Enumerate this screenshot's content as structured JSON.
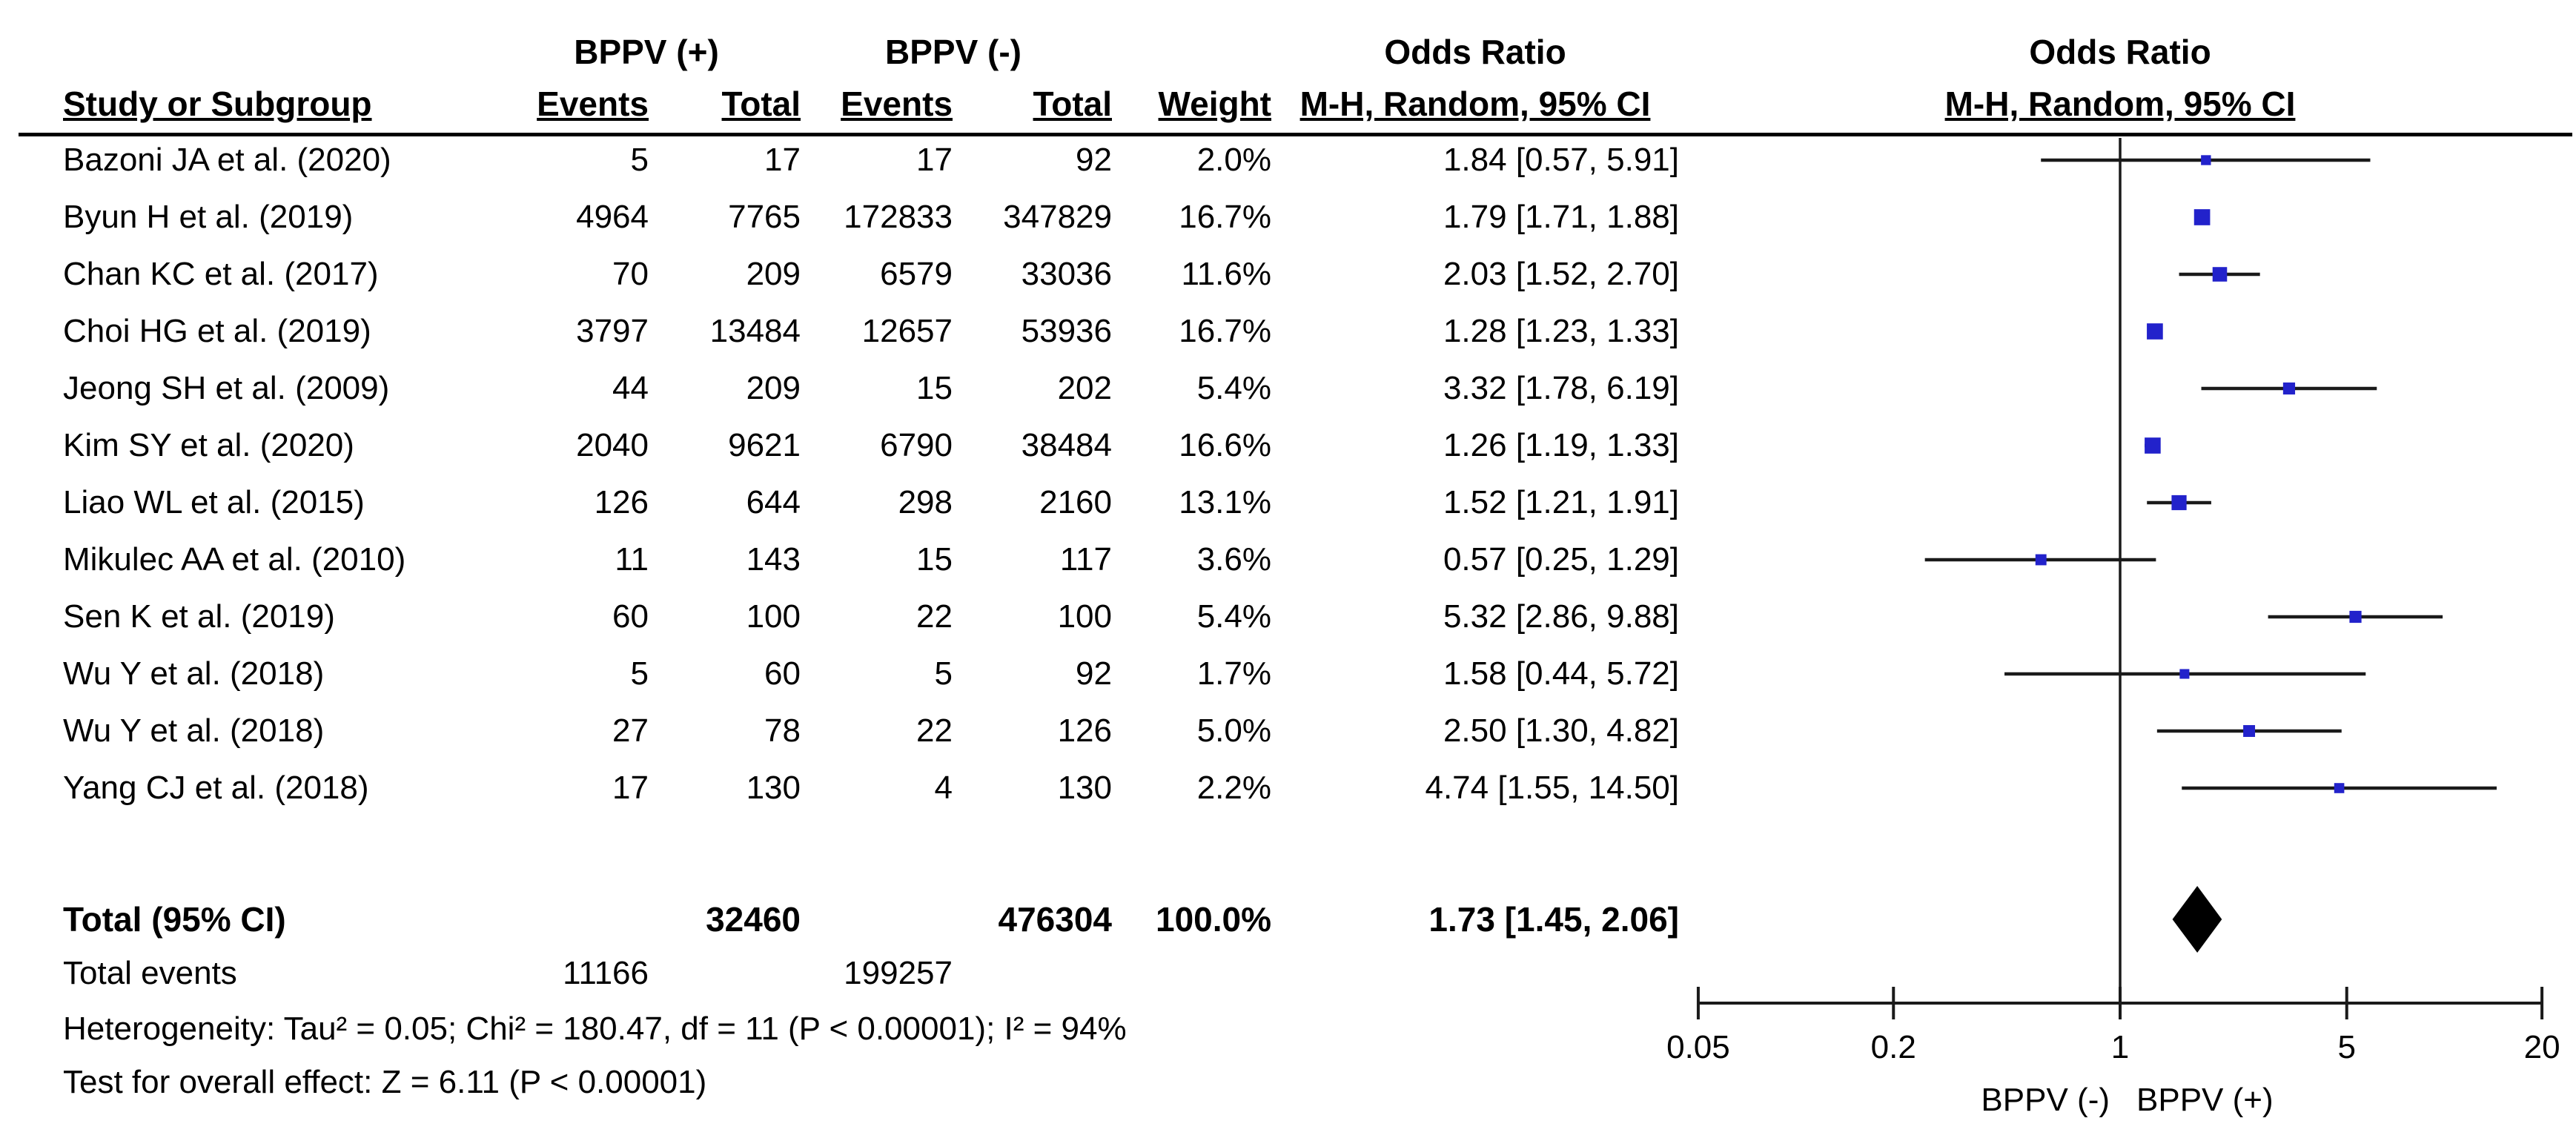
{
  "header": {
    "group_pos": "BPPV (+)",
    "group_neg": "BPPV (-)",
    "study": "Study or Subgroup",
    "events": "Events",
    "total": "Total",
    "weight": "Weight",
    "or_col_title": "Odds Ratio",
    "or_col_sub": "M-H, Random, 95% CI",
    "plot_col_title": "Odds Ratio",
    "plot_col_sub": "M-H, Random, 95% CI"
  },
  "table": {
    "rows": [
      {
        "study": "Bazoni JA et al. (2020)",
        "events1": "5",
        "total1": "17",
        "events2": "17",
        "total2": "92",
        "weight": "2.0%",
        "or_ci": "1.84 [0.57, 5.91]"
      },
      {
        "study": "Byun H et al. (2019)",
        "events1": "4964",
        "total1": "7765",
        "events2": "172833",
        "total2": "347829",
        "weight": "16.7%",
        "or_ci": "1.79 [1.71, 1.88]"
      },
      {
        "study": "Chan KC et al. (2017)",
        "events1": "70",
        "total1": "209",
        "events2": "6579",
        "total2": "33036",
        "weight": "11.6%",
        "or_ci": "2.03 [1.52, 2.70]"
      },
      {
        "study": "Choi HG et al. (2019)",
        "events1": "3797",
        "total1": "13484",
        "events2": "12657",
        "total2": "53936",
        "weight": "16.7%",
        "or_ci": "1.28 [1.23, 1.33]"
      },
      {
        "study": "Jeong SH et al. (2009)",
        "events1": "44",
        "total1": "209",
        "events2": "15",
        "total2": "202",
        "weight": "5.4%",
        "or_ci": "3.32 [1.78, 6.19]"
      },
      {
        "study": "Kim SY et al. (2020)",
        "events1": "2040",
        "total1": "9621",
        "events2": "6790",
        "total2": "38484",
        "weight": "16.6%",
        "or_ci": "1.26 [1.19, 1.33]"
      },
      {
        "study": "Liao WL et al. (2015)",
        "events1": "126",
        "total1": "644",
        "events2": "298",
        "total2": "2160",
        "weight": "13.1%",
        "or_ci": "1.52 [1.21, 1.91]"
      },
      {
        "study": "Mikulec AA et al. (2010)",
        "events1": "11",
        "total1": "143",
        "events2": "15",
        "total2": "117",
        "weight": "3.6%",
        "or_ci": "0.57 [0.25, 1.29]"
      },
      {
        "study": "Sen K et al. (2019)",
        "events1": "60",
        "total1": "100",
        "events2": "22",
        "total2": "100",
        "weight": "5.4%",
        "or_ci": "5.32 [2.86, 9.88]"
      },
      {
        "study": "Wu Y et al. (2018)",
        "events1": "5",
        "total1": "60",
        "events2": "5",
        "total2": "92",
        "weight": "1.7%",
        "or_ci": "1.58 [0.44, 5.72]"
      },
      {
        "study": "Wu Y et al. (2018)",
        "events1": "27",
        "total1": "78",
        "events2": "22",
        "total2": "126",
        "weight": "5.0%",
        "or_ci": "2.50 [1.30, 4.82]"
      },
      {
        "study": "Yang CJ et al. (2018)",
        "events1": "17",
        "total1": "130",
        "events2": "4",
        "total2": "130",
        "weight": "2.2%",
        "or_ci": "4.74 [1.55, 14.50]"
      }
    ],
    "total_row": {
      "study": "Total (95% CI)",
      "events1": "",
      "total1": "32460",
      "events2": "",
      "total2": "476304",
      "weight": "100.0%",
      "or_ci": "1.73 [1.45, 2.06]"
    },
    "total_events_row": {
      "study": "Total events",
      "events1": "11166",
      "total1": "",
      "events2": "199257",
      "total2": "",
      "weight": "",
      "or_ci": ""
    },
    "heterogeneity": "Heterogeneity: Tau² = 0.05; Chi² = 180.47, df = 11 (P < 0.00001); I² = 94%",
    "overall_effect": "Test for overall effect: Z = 6.11 (P < 0.00001)"
  },
  "chart_data": {
    "type": "forest",
    "scale": "log10",
    "xlim": [
      0.05,
      20
    ],
    "null_line": 1,
    "axis_ticks": [
      0.05,
      0.2,
      1,
      5,
      20
    ],
    "axis_tick_labels": [
      "0.05",
      "0.2",
      "1",
      "5",
      "20"
    ],
    "axis_left_label": "BPPV (-)",
    "axis_right_label": "BPPV (+)",
    "marker_color": "#2222cb",
    "line_color": "#1a1a1a",
    "studies": [
      {
        "name": "Bazoni JA et al. (2020)",
        "or": 1.84,
        "lo": 0.57,
        "hi": 5.91,
        "weight": 2.0
      },
      {
        "name": "Byun H et al. (2019)",
        "or": 1.79,
        "lo": 1.71,
        "hi": 1.88,
        "weight": 16.7
      },
      {
        "name": "Chan KC et al. (2017)",
        "or": 2.03,
        "lo": 1.52,
        "hi": 2.7,
        "weight": 11.6
      },
      {
        "name": "Choi HG et al. (2019)",
        "or": 1.28,
        "lo": 1.23,
        "hi": 1.33,
        "weight": 16.7
      },
      {
        "name": "Jeong SH et al. (2009)",
        "or": 3.32,
        "lo": 1.78,
        "hi": 6.19,
        "weight": 5.4
      },
      {
        "name": "Kim SY et al. (2020)",
        "or": 1.26,
        "lo": 1.19,
        "hi": 1.33,
        "weight": 16.6
      },
      {
        "name": "Liao WL et al. (2015)",
        "or": 1.52,
        "lo": 1.21,
        "hi": 1.91,
        "weight": 13.1
      },
      {
        "name": "Mikulec AA et al. (2010)",
        "or": 0.57,
        "lo": 0.25,
        "hi": 1.29,
        "weight": 3.6
      },
      {
        "name": "Sen K et al. (2019)",
        "or": 5.32,
        "lo": 2.86,
        "hi": 9.88,
        "weight": 5.4
      },
      {
        "name": "Wu Y et al. (2018)",
        "or": 1.58,
        "lo": 0.44,
        "hi": 5.72,
        "weight": 1.7
      },
      {
        "name": "Wu Y et al. (2018)",
        "or": 2.5,
        "lo": 1.3,
        "hi": 4.82,
        "weight": 5.0
      },
      {
        "name": "Yang CJ et al. (2018)",
        "or": 4.74,
        "lo": 1.55,
        "hi": 14.5,
        "weight": 2.2
      }
    ],
    "total": {
      "label": "Total (95% CI)",
      "or": 1.73,
      "lo": 1.45,
      "hi": 2.06
    }
  }
}
